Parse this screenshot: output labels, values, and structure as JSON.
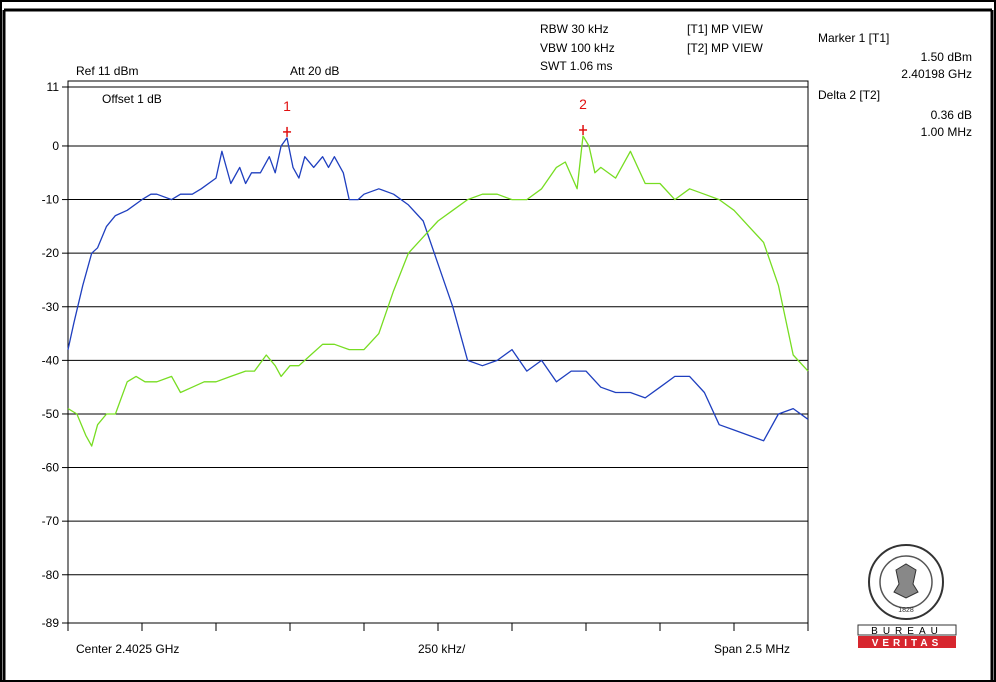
{
  "header": {
    "rbw": "RBW 30 kHz",
    "vbw": "VBW 100 kHz",
    "swt": "SWT 1.06 ms",
    "t1_view": "[T1] MP VIEW",
    "t2_view": "[T2] MP VIEW",
    "ref": "Ref 11 dBm",
    "att": "Att  20 dB",
    "offset": "Offset 1 dB"
  },
  "markers": {
    "marker1_title": "Marker 1 [T1]",
    "marker1_level": "1.50 dBm",
    "marker1_freq": "2.40198 GHz",
    "delta2_title": "Delta 2 [T2]",
    "delta2_level": "0.36 dB",
    "delta2_freq": "1.00 MHz",
    "m1_label": "1",
    "m2_label": "2"
  },
  "footer": {
    "center": "Center 2.4025 GHz",
    "per_div": "250 kHz/",
    "span": "Span 2.5 MHz"
  },
  "logo": {
    "word1": "BUREAU",
    "word2": "VERITAS",
    "year": "1828",
    "color": "#d7262e"
  },
  "chart_data": {
    "type": "line",
    "xlabel": "",
    "ylabel": "",
    "x_unit": "MHz (offset from 2.40125 GHz start)",
    "xlim": [
      0,
      2.5
    ],
    "ylim": [
      -89,
      11
    ],
    "y_ticks": [
      11,
      0,
      -10,
      -20,
      -30,
      -40,
      -50,
      -60,
      -70,
      -80,
      -89
    ],
    "grid": true,
    "colors": {
      "T1": "#1f3fbf",
      "T2": "#77dd22",
      "grid": "#000000",
      "marker": "#e01010"
    },
    "marker_points": [
      {
        "label": "1",
        "x": 0.74,
        "y": 1.5
      },
      {
        "label": "2",
        "x": 1.74,
        "y": 1.86
      }
    ],
    "series": [
      {
        "x": [
          0,
          0.02,
          0.05,
          0.08,
          0.1,
          0.13,
          0.16,
          0.2,
          0.25,
          0.28,
          0.3,
          0.35,
          0.38,
          0.42,
          0.45,
          0.5,
          0.52,
          0.55,
          0.58,
          0.6,
          0.62,
          0.65,
          0.68,
          0.7,
          0.72,
          0.74,
          0.76,
          0.78,
          0.8,
          0.83,
          0.86,
          0.88,
          0.9,
          0.93,
          0.95,
          0.98,
          1.0,
          1.05,
          1.1,
          1.15,
          1.2,
          1.25,
          1.3,
          1.35,
          1.4,
          1.45,
          1.5,
          1.55,
          1.6,
          1.65,
          1.7,
          1.75,
          1.8,
          1.85,
          1.9,
          1.95,
          2.0,
          2.05,
          2.1,
          2.15,
          2.2,
          2.25,
          2.3,
          2.35,
          2.4,
          2.45,
          2.5
        ],
        "y": [
          -38,
          -33,
          -26,
          -20,
          -19,
          -15,
          -13,
          -12,
          -10,
          -9,
          -9,
          -10,
          -9,
          -9,
          -8,
          -6,
          -1,
          -7,
          -4,
          -7,
          -5,
          -5,
          -2,
          -5,
          0,
          1.5,
          -4,
          -6,
          -2,
          -4,
          -2,
          -4,
          -2,
          -5,
          -10,
          -10,
          -9,
          -8,
          -9,
          -11,
          -14,
          -22,
          -30,
          -40,
          -41,
          -40,
          -38,
          -42,
          -40,
          -44,
          -42,
          -42,
          -45,
          -46,
          -46,
          -47,
          -45,
          -43,
          -43,
          -46,
          -52,
          -53,
          -54,
          -55,
          -50,
          -49,
          -51
        ]
      },
      {
        "x": [
          0,
          0.03,
          0.06,
          0.08,
          0.1,
          0.13,
          0.16,
          0.2,
          0.23,
          0.26,
          0.3,
          0.35,
          0.38,
          0.42,
          0.46,
          0.5,
          0.55,
          0.6,
          0.63,
          0.67,
          0.7,
          0.72,
          0.75,
          0.78,
          0.82,
          0.86,
          0.9,
          0.95,
          1.0,
          1.05,
          1.1,
          1.15,
          1.2,
          1.25,
          1.3,
          1.35,
          1.4,
          1.45,
          1.5,
          1.55,
          1.6,
          1.65,
          1.68,
          1.72,
          1.74,
          1.76,
          1.78,
          1.8,
          1.85,
          1.9,
          1.95,
          2.0,
          2.05,
          2.1,
          2.15,
          2.2,
          2.25,
          2.3,
          2.35,
          2.4,
          2.45,
          2.5
        ],
        "y": [
          -49,
          -50,
          -54,
          -56,
          -52,
          -50,
          -50,
          -44,
          -43,
          -44,
          -44,
          -43,
          -46,
          -45,
          -44,
          -44,
          -43,
          -42,
          -42,
          -39,
          -41,
          -43,
          -41,
          -41,
          -39,
          -37,
          -37,
          -38,
          -38,
          -35,
          -27,
          -20,
          -17,
          -14,
          -12,
          -10,
          -9,
          -9,
          -10,
          -10,
          -8,
          -4,
          -3,
          -8,
          1.86,
          0,
          -5,
          -4,
          -6,
          -1,
          -7,
          -7,
          -10,
          -8,
          -9,
          -10,
          -12,
          -15,
          -18,
          -26,
          -39,
          -42
        ]
      }
    ]
  }
}
